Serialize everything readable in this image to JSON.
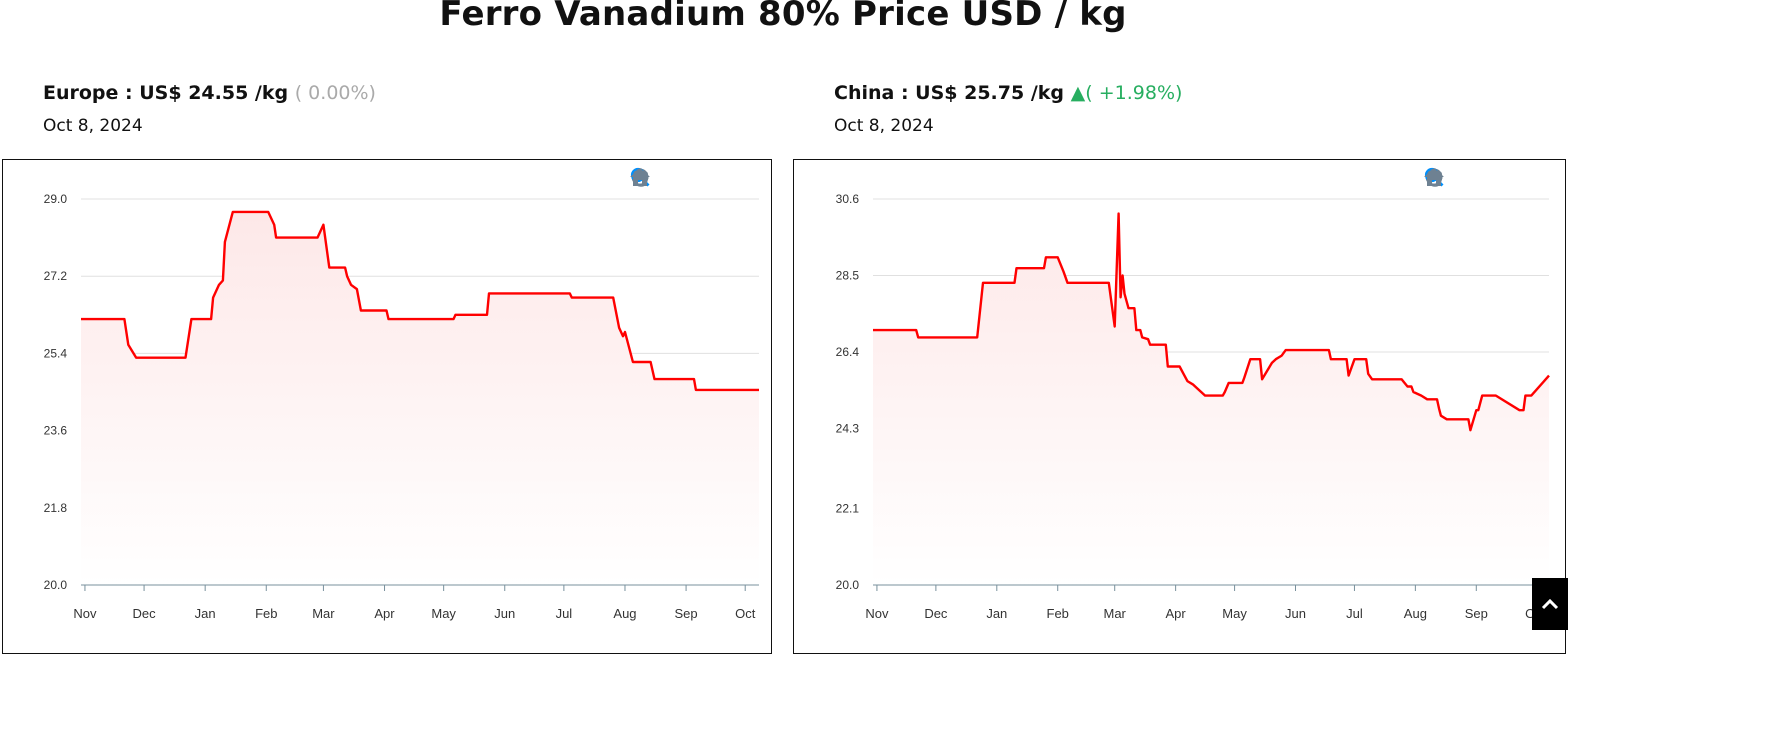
{
  "page_title": "Ferro Vanadium 80% Price USD / kg",
  "panels": [
    {
      "region_label": "Europe : US$ ",
      "price": "24.55",
      "unit": " /kg",
      "change": "( 0.00%)",
      "change_color": "#aaaaaa",
      "arrow": "",
      "date": "Oct 8, 2024"
    },
    {
      "region_label": "China : US$ ",
      "price": "25.75",
      "unit": " /kg",
      "change": "( +1.98%)",
      "change_color": "#27ae60",
      "arrow": "▲",
      "date": "Oct 8, 2024"
    }
  ],
  "toolbar_icons": [
    "zoom-in-icon",
    "zoom-out-icon",
    "selection-zoom-icon",
    "pan-hand-icon",
    "reset-home-icon"
  ],
  "colors": {
    "line": "#ff0000",
    "fill": "#fde8e8",
    "icon": "#6e8192",
    "icon_active": "#008ffb"
  },
  "chart_data": [
    {
      "type": "area",
      "title": "",
      "xlabel": "",
      "ylabel": "",
      "x_range": [
        "2023-10-30",
        "2024-10-08"
      ],
      "ylim": [
        20.0,
        29.0
      ],
      "y_ticks": [
        "20.0",
        "21.8",
        "23.6",
        "25.4",
        "27.2",
        "29.0"
      ],
      "x_ticks": [
        {
          "date": "2023-11-01",
          "label": "Nov"
        },
        {
          "date": "2023-12-01",
          "label": "Dec"
        },
        {
          "date": "2024-01-01",
          "label": "Jan"
        },
        {
          "date": "2024-02-01",
          "label": "Feb"
        },
        {
          "date": "2024-03-01",
          "label": "Mar"
        },
        {
          "date": "2024-04-01",
          "label": "Apr"
        },
        {
          "date": "2024-05-01",
          "label": "May"
        },
        {
          "date": "2024-06-01",
          "label": "Jun"
        },
        {
          "date": "2024-07-01",
          "label": "Jul"
        },
        {
          "date": "2024-08-01",
          "label": "Aug"
        },
        {
          "date": "2024-09-01",
          "label": "Sep"
        },
        {
          "date": "2024-10-01",
          "label": "Oct"
        }
      ],
      "grid": true,
      "series": [
        {
          "points": [
            [
              "2023-10-30",
              26.2
            ],
            [
              "2023-11-21",
              26.2
            ],
            [
              "2023-11-23",
              25.6
            ],
            [
              "2023-11-27",
              25.3
            ],
            [
              "2023-12-22",
              25.3
            ],
            [
              "2023-12-25",
              26.2
            ],
            [
              "2024-01-04",
              26.2
            ],
            [
              "2024-01-05",
              26.7
            ],
            [
              "2024-01-08",
              27.0
            ],
            [
              "2024-01-10",
              27.1
            ],
            [
              "2024-01-11",
              28.0
            ],
            [
              "2024-01-15",
              28.7
            ],
            [
              "2024-02-02",
              28.7
            ],
            [
              "2024-02-05",
              28.4
            ],
            [
              "2024-02-06",
              28.1
            ],
            [
              "2024-02-27",
              28.1
            ],
            [
              "2024-03-01",
              28.4
            ],
            [
              "2024-03-04",
              27.4
            ],
            [
              "2024-03-12",
              27.4
            ],
            [
              "2024-03-13",
              27.2
            ],
            [
              "2024-03-15",
              27.0
            ],
            [
              "2024-03-18",
              26.9
            ],
            [
              "2024-03-20",
              26.4
            ],
            [
              "2024-04-02",
              26.4
            ],
            [
              "2024-04-03",
              26.2
            ],
            [
              "2024-05-06",
              26.2
            ],
            [
              "2024-05-07",
              26.3
            ],
            [
              "2024-05-23",
              26.3
            ],
            [
              "2024-05-24",
              26.8
            ],
            [
              "2024-07-04",
              26.8
            ],
            [
              "2024-07-05",
              26.7
            ],
            [
              "2024-07-26",
              26.7
            ],
            [
              "2024-07-29",
              26.0
            ],
            [
              "2024-07-31",
              25.8
            ],
            [
              "2024-08-01",
              25.9
            ],
            [
              "2024-08-05",
              25.2
            ],
            [
              "2024-08-14",
              25.2
            ],
            [
              "2024-08-16",
              24.8
            ],
            [
              "2024-09-05",
              24.8
            ],
            [
              "2024-09-06",
              24.55
            ],
            [
              "2024-10-08",
              24.55
            ]
          ]
        }
      ]
    },
    {
      "type": "area",
      "title": "",
      "xlabel": "",
      "ylabel": "",
      "x_range": [
        "2023-10-30",
        "2024-10-08"
      ],
      "ylim": [
        20.0,
        30.6
      ],
      "y_ticks": [
        "20.0",
        "22.1",
        "24.3",
        "26.4",
        "28.5",
        "30.6"
      ],
      "x_ticks": [
        {
          "date": "2023-11-01",
          "label": "Nov"
        },
        {
          "date": "2023-12-01",
          "label": "Dec"
        },
        {
          "date": "2024-01-01",
          "label": "Jan"
        },
        {
          "date": "2024-02-01",
          "label": "Feb"
        },
        {
          "date": "2024-03-01",
          "label": "Mar"
        },
        {
          "date": "2024-04-01",
          "label": "Apr"
        },
        {
          "date": "2024-05-01",
          "label": "May"
        },
        {
          "date": "2024-06-01",
          "label": "Jun"
        },
        {
          "date": "2024-07-01",
          "label": "Jul"
        },
        {
          "date": "2024-08-01",
          "label": "Aug"
        },
        {
          "date": "2024-09-01",
          "label": "Sep"
        },
        {
          "date": "2024-10-01",
          "label": "Oct"
        }
      ],
      "grid": true,
      "series": [
        {
          "points": [
            [
              "2023-10-30",
              27.0
            ],
            [
              "2023-11-21",
              27.0
            ],
            [
              "2023-11-22",
              26.8
            ],
            [
              "2023-12-22",
              26.8
            ],
            [
              "2023-12-25",
              28.3
            ],
            [
              "2024-01-10",
              28.3
            ],
            [
              "2024-01-11",
              28.7
            ],
            [
              "2024-01-25",
              28.7
            ],
            [
              "2024-01-26",
              29.0
            ],
            [
              "2024-02-01",
              29.0
            ],
            [
              "2024-02-04",
              28.6
            ],
            [
              "2024-02-06",
              28.3
            ],
            [
              "2024-02-27",
              28.3
            ],
            [
              "2024-03-01",
              27.1
            ],
            [
              "2024-03-03",
              30.2
            ],
            [
              "2024-03-04",
              27.9
            ],
            [
              "2024-03-05",
              28.5
            ],
            [
              "2024-03-06",
              28.0
            ],
            [
              "2024-03-08",
              27.6
            ],
            [
              "2024-03-11",
              27.6
            ],
            [
              "2024-03-12",
              27.0
            ],
            [
              "2024-03-14",
              27.0
            ],
            [
              "2024-03-15",
              26.8
            ],
            [
              "2024-03-18",
              26.75
            ],
            [
              "2024-03-19",
              26.6
            ],
            [
              "2024-03-27",
              26.6
            ],
            [
              "2024-03-28",
              26.0
            ],
            [
              "2024-04-03",
              26.0
            ],
            [
              "2024-04-05",
              25.8
            ],
            [
              "2024-04-07",
              25.6
            ],
            [
              "2024-04-10",
              25.5
            ],
            [
              "2024-04-12",
              25.4
            ],
            [
              "2024-04-16",
              25.2
            ],
            [
              "2024-04-25",
              25.2
            ],
            [
              "2024-04-26",
              25.3
            ],
            [
              "2024-04-28",
              25.55
            ],
            [
              "2024-05-05",
              25.55
            ],
            [
              "2024-05-06",
              25.7
            ],
            [
              "2024-05-09",
              26.2
            ],
            [
              "2024-05-14",
              26.2
            ],
            [
              "2024-05-15",
              25.65
            ],
            [
              "2024-05-20",
              26.1
            ],
            [
              "2024-05-22",
              26.2
            ],
            [
              "2024-05-25",
              26.3
            ],
            [
              "2024-05-27",
              26.45
            ],
            [
              "2024-06-18",
              26.45
            ],
            [
              "2024-06-19",
              26.2
            ],
            [
              "2024-06-27",
              26.2
            ],
            [
              "2024-06-28",
              25.75
            ],
            [
              "2024-07-01",
              26.2
            ],
            [
              "2024-07-07",
              26.2
            ],
            [
              "2024-07-08",
              25.8
            ],
            [
              "2024-07-10",
              25.65
            ],
            [
              "2024-07-25",
              25.65
            ],
            [
              "2024-07-28",
              25.45
            ],
            [
              "2024-07-30",
              25.45
            ],
            [
              "2024-07-31",
              25.3
            ],
            [
              "2024-08-04",
              25.2
            ],
            [
              "2024-08-07",
              25.1
            ],
            [
              "2024-08-12",
              25.1
            ],
            [
              "2024-08-13",
              24.85
            ],
            [
              "2024-08-14",
              24.65
            ],
            [
              "2024-08-17",
              24.55
            ],
            [
              "2024-08-28",
              24.55
            ],
            [
              "2024-08-29",
              24.25
            ],
            [
              "2024-09-01",
              24.8
            ],
            [
              "2024-09-02",
              24.8
            ],
            [
              "2024-09-04",
              25.2
            ],
            [
              "2024-09-11",
              25.2
            ],
            [
              "2024-09-23",
              24.8
            ],
            [
              "2024-09-25",
              24.8
            ],
            [
              "2024-09-26",
              25.2
            ],
            [
              "2024-09-29",
              25.2
            ],
            [
              "2024-10-08",
              25.75
            ]
          ]
        }
      ]
    }
  ]
}
